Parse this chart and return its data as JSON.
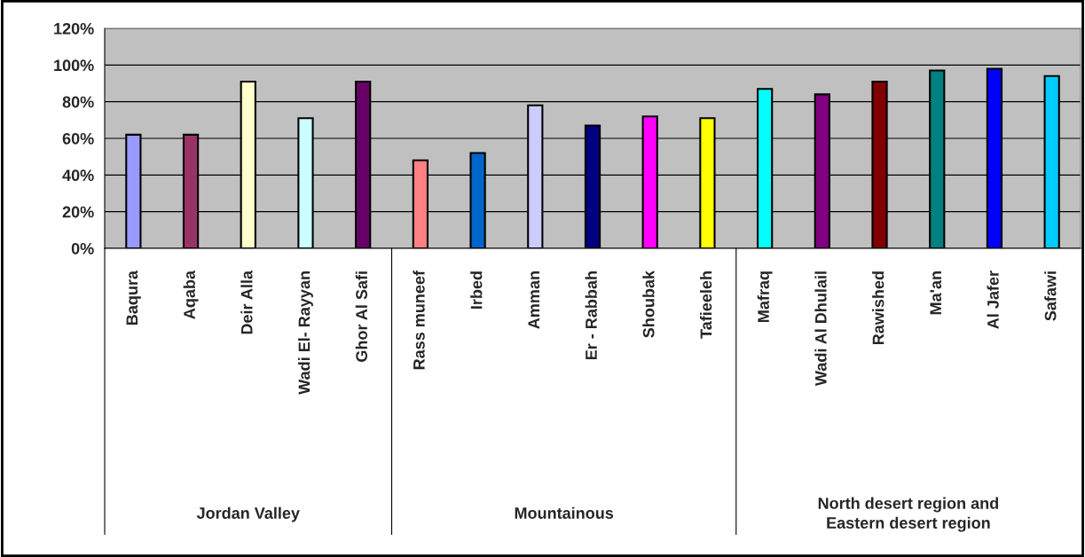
{
  "chart_data": {
    "type": "bar",
    "categories": [
      "Baqura",
      "Aqaba",
      "Deir Alla",
      "Wadi El- Rayyan",
      "Ghor Al Safi",
      "Rass muneef",
      "Irbed",
      "Amman",
      "Er - Rabbah",
      "Shoubak",
      "Tafieeleh",
      "Mafraq",
      "Wadi Al Dhulail",
      "Rawished",
      "Ma'an",
      "Al Jafer",
      "Safawi"
    ],
    "values": [
      62,
      62,
      91,
      71,
      91,
      48,
      52,
      78,
      67,
      72,
      71,
      87,
      84,
      91,
      97,
      98,
      94
    ],
    "colors": [
      "#9999ff",
      "#993366",
      "#ffffcc",
      "#ccffff",
      "#660066",
      "#ff8080",
      "#0066cc",
      "#ccccff",
      "#000080",
      "#ff00ff",
      "#ffff00",
      "#00ffff",
      "#800080",
      "#800000",
      "#008080",
      "#0000ff",
      "#00ccff"
    ],
    "ylim": [
      0,
      120
    ],
    "yticks": [
      {
        "value": 0,
        "label": "0%"
      },
      {
        "value": 20,
        "label": "20%"
      },
      {
        "value": 40,
        "label": "40%"
      },
      {
        "value": 60,
        "label": "60%"
      },
      {
        "value": 80,
        "label": "80%"
      },
      {
        "value": 100,
        "label": "100%"
      },
      {
        "value": 120,
        "label": "120%"
      }
    ],
    "annotations": [
      "Jordan Valley",
      "Mountainous",
      "North desert region and\nEastern desert region"
    ],
    "grid": "y",
    "legend": false
  }
}
